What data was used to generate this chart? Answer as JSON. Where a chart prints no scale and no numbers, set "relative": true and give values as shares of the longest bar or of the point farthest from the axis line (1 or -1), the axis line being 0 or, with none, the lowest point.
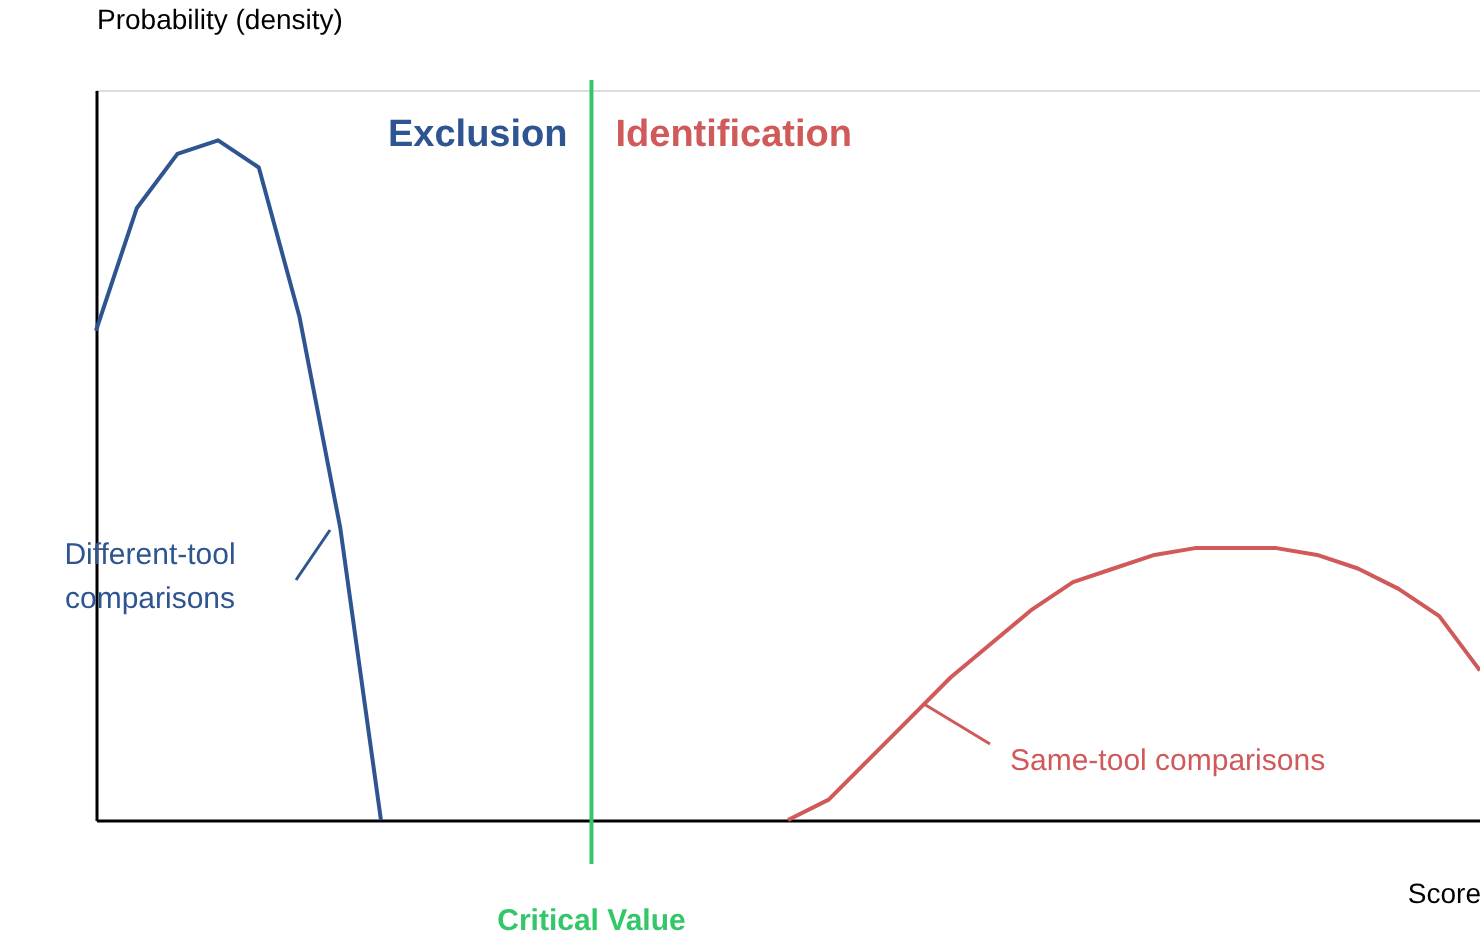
{
  "chart_data": {
    "type": "line",
    "relative": true,
    "xlabel": "Score",
    "ylabel": "Probability (density)",
    "tick_labels": false,
    "categories": [
      null,
      null,
      null,
      null,
      null,
      null,
      null,
      null,
      null,
      null,
      null,
      null,
      null,
      null,
      null,
      null,
      null,
      null,
      null,
      null,
      null,
      null,
      null,
      null,
      null,
      null,
      null,
      null,
      null,
      null,
      null,
      null,
      null,
      null,
      null
    ],
    "series": [
      {
        "name": "Different-tool comparisons",
        "color": "#2e5591",
        "values": [
          0.72,
          0.9,
          0.98,
          1.0,
          0.96,
          0.74,
          0.43,
          0.0,
          null,
          null,
          null,
          null,
          null,
          null,
          null,
          null,
          null,
          null,
          null,
          null,
          null,
          null,
          null,
          null,
          null,
          null,
          null,
          null,
          null,
          null,
          null,
          null,
          null,
          null,
          null
        ]
      },
      {
        "name": "Same-tool comparisons",
        "color": "#d05a5a",
        "values": [
          null,
          null,
          null,
          null,
          null,
          null,
          null,
          null,
          null,
          null,
          null,
          null,
          null,
          null,
          null,
          null,
          null,
          0.0,
          0.03,
          0.09,
          0.15,
          0.21,
          0.26,
          0.31,
          0.35,
          0.37,
          0.39,
          0.4,
          0.4,
          0.4,
          0.39,
          0.37,
          0.34,
          0.3,
          0.22
        ]
      }
    ],
    "annotations": [
      "Exclusion",
      "Identification",
      "Critical Value"
    ]
  }
}
